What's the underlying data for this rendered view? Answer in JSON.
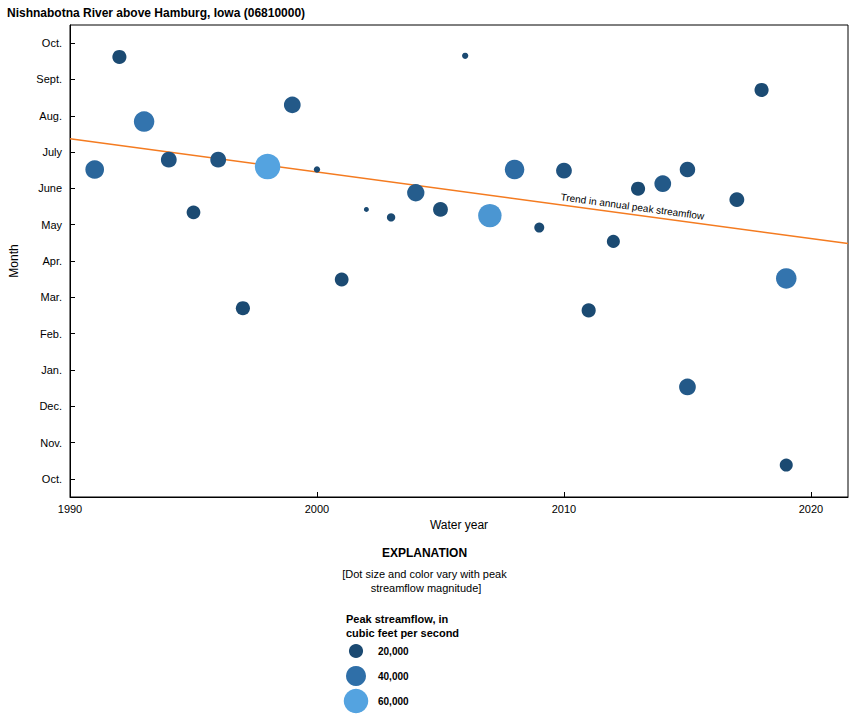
{
  "chart_data": {
    "type": "scatter",
    "title": "Nishnabotna River above Hamburg, Iowa (06810000)",
    "xlabel": "Water year",
    "ylabel": "Month",
    "xlim": [
      1990,
      2021.5
    ],
    "xticks": [
      1990,
      2000,
      2010,
      2020
    ],
    "ylim": [
      -0.5,
      12.5
    ],
    "yticks": [
      {
        "value": 0,
        "label": "Oct."
      },
      {
        "value": 1,
        "label": "Nov."
      },
      {
        "value": 2,
        "label": "Dec."
      },
      {
        "value": 3,
        "label": "Jan."
      },
      {
        "value": 4,
        "label": "Feb."
      },
      {
        "value": 5,
        "label": "Mar."
      },
      {
        "value": 6,
        "label": "Apr."
      },
      {
        "value": 7,
        "label": "May"
      },
      {
        "value": 8,
        "label": "June"
      },
      {
        "value": 9,
        "label": "July"
      },
      {
        "value": 10,
        "label": "Aug."
      },
      {
        "value": 11,
        "label": "Sept."
      },
      {
        "value": 12,
        "label": "Oct."
      }
    ],
    "grid": false,
    "x": [
      1991,
      1992,
      1993,
      1994,
      1995,
      1996,
      1997,
      1998,
      1999,
      2000,
      2001,
      2002,
      2003,
      2004,
      2005,
      2006,
      2007,
      2008,
      2009,
      2010,
      2011,
      2012,
      2013,
      2014,
      2015,
      2015,
      2017,
      2018,
      2019,
      2019
    ],
    "values": [
      8.52,
      11.62,
      9.84,
      8.79,
      7.34,
      8.79,
      4.7,
      8.6,
      10.3,
      8.52,
      5.49,
      7.42,
      7.2,
      7.88,
      7.42,
      11.65,
      7.25,
      8.52,
      6.92,
      8.49,
      4.64,
      6.54,
      7.99,
      8.13,
      8.52,
      2.53,
      7.69,
      10.71,
      0.38,
      5.52
    ],
    "peak_streamflow": [
      35000,
      20000,
      42000,
      25000,
      19000,
      25000,
      20000,
      65000,
      28000,
      4000,
      19000,
      2500,
      7000,
      30000,
      22000,
      4000,
      55000,
      38000,
      10000,
      25000,
      20000,
      17000,
      20000,
      28000,
      24000,
      28000,
      22000,
      20000,
      17000,
      42000
    ],
    "trend": {
      "label": "Trend in annual peak streamflow",
      "x": [
        1990,
        2021.5
      ],
      "values": [
        9.37,
        6.48
      ],
      "color": "#f47b20"
    },
    "size_legend": {
      "title": "EXPLANATION",
      "note": "[Dot size and color vary with peak streamflow magnitude]",
      "label": "Peak streamflow, in cubic feet per second",
      "ticks": [
        {
          "value": 20000,
          "label": "20,000"
        },
        {
          "value": 40000,
          "label": "40,000"
        },
        {
          "value": 60000,
          "label": "60,000"
        }
      ]
    }
  }
}
